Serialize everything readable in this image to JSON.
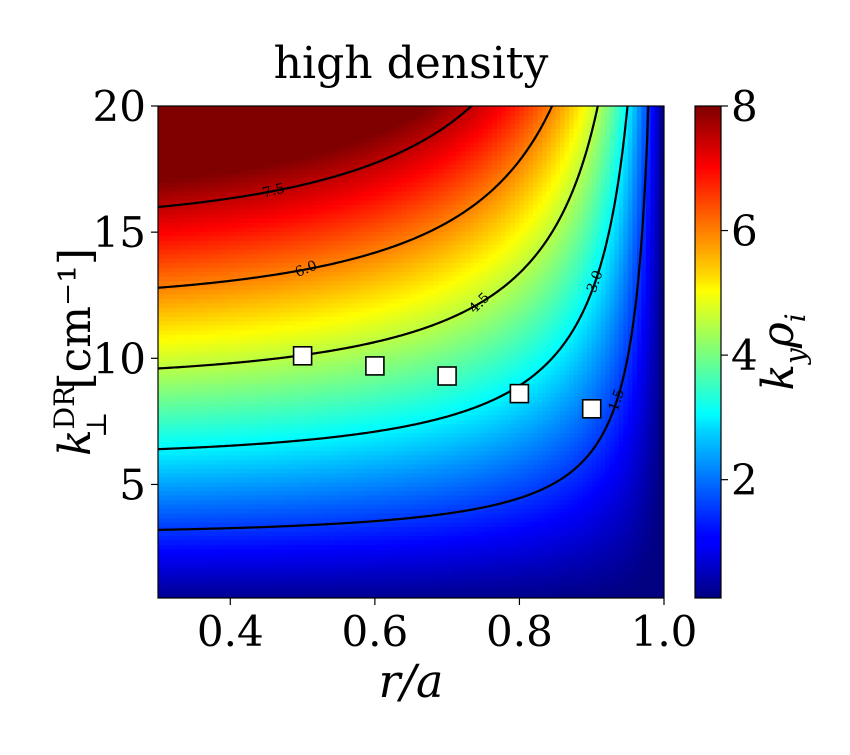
{
  "chart_data": {
    "type": "heatmap",
    "title": "high density",
    "xlabel": "r/a",
    "ylabel": "k⊥DR [cm⁻¹]",
    "ylabel_main": "k",
    "ylabel_sub": "⊥",
    "ylabel_sup": "DR",
    "ylabel_unit": "[cm⁻¹]",
    "colorbar_label": "kyρi",
    "colorbar_label_main": "k",
    "colorbar_label_sub1": "y",
    "colorbar_label_rho": "ρ",
    "colorbar_label_sub2": "i",
    "xlim": [
      0.3,
      1.0
    ],
    "ylim": [
      0.5,
      20
    ],
    "clim": [
      0.1,
      8
    ],
    "colormap": "jet",
    "x_ticks": [
      0.4,
      0.6,
      0.8,
      1.0
    ],
    "x_tick_labels": [
      "0.4",
      "0.6",
      "0.8",
      "1.0"
    ],
    "y_ticks": [
      5,
      10,
      15,
      20
    ],
    "y_tick_labels": [
      "5",
      "10",
      "15",
      "20"
    ],
    "colorbar_ticks": [
      2,
      4,
      6,
      8
    ],
    "colorbar_tick_labels": [
      "2",
      "4",
      "6",
      "8"
    ],
    "contour_levels": [
      1.5,
      3.0,
      4.5,
      6.0,
      7.5
    ],
    "contour_labels": [
      "1.5",
      "3.0",
      "4.5",
      "6.0",
      "7.5"
    ],
    "markers": {
      "shape": "square",
      "x": [
        0.5,
        0.6,
        0.7,
        0.8,
        0.9
      ],
      "y": [
        10.1,
        9.7,
        9.3,
        8.6,
        8.0
      ]
    }
  },
  "colors": {
    "contour": "#000000",
    "marker_fill": "#ffffff",
    "marker_edge": "#000000"
  }
}
